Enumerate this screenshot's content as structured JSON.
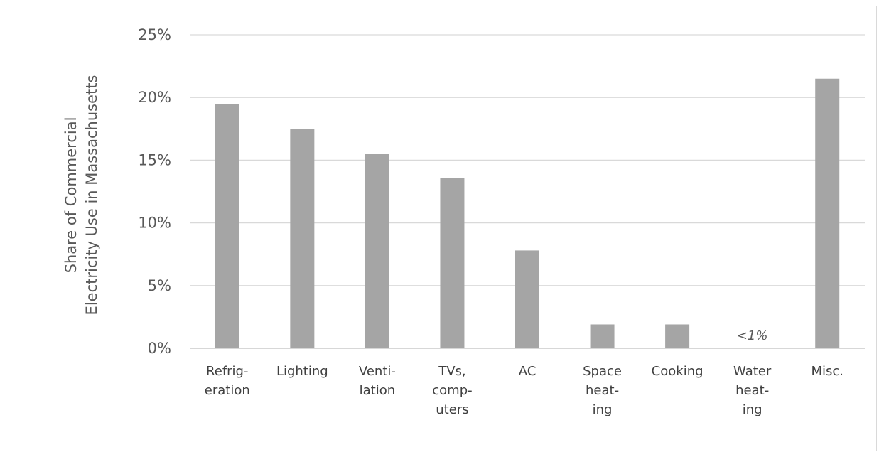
{
  "chart_data": {
    "type": "bar",
    "ylabel": [
      "Share of Commercial",
      "Electricity Use in Massachusetts"
    ],
    "ylim": [
      0,
      25
    ],
    "yticks": [
      "0%",
      "5%",
      "10%",
      "15%",
      "20%",
      "25%"
    ],
    "ytick_values": [
      0,
      5,
      10,
      15,
      20,
      25
    ],
    "grid": true,
    "bar_color": "#a5a5a5",
    "categories": [
      [
        "Refrig-",
        "eration"
      ],
      [
        "Lighting"
      ],
      [
        "Venti-",
        "lation"
      ],
      [
        "TVs,",
        "comp-",
        "uters"
      ],
      [
        "AC"
      ],
      [
        "Space",
        "heat-",
        "ing"
      ],
      [
        "Cooking"
      ],
      [
        "Water",
        "heat-",
        "ing"
      ],
      [
        "Misc."
      ]
    ],
    "values": [
      19.5,
      17.5,
      15.5,
      13.6,
      7.8,
      1.9,
      1.9,
      0,
      21.5
    ],
    "annotations": [
      {
        "category_index": 7,
        "text": "<1%"
      }
    ]
  }
}
